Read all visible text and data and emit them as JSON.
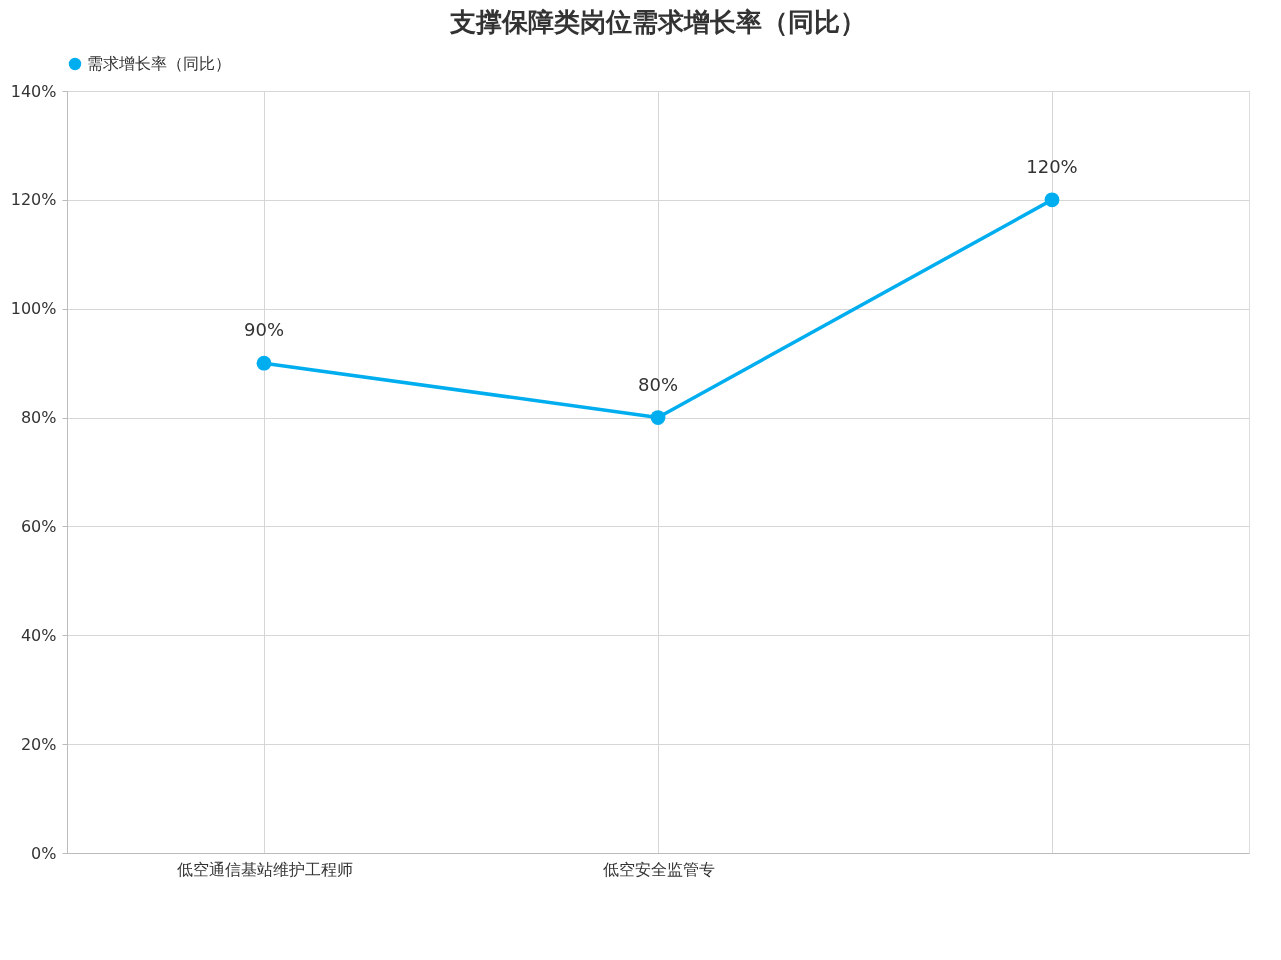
{
  "chart_data": {
    "type": "line",
    "title": "支撑保障类岗位需求增长率（同比）",
    "categories": [
      "低空通信基站维护工程师",
      "低空安全监管专",
      null
    ],
    "series": [
      {
        "name": "需求增长率（同比）",
        "color": "#00aeef",
        "values": [
          90,
          80,
          120
        ],
        "value_labels": [
          "90%",
          "80%",
          "120%"
        ]
      }
    ],
    "ylim": [
      0,
      140
    ],
    "yticks": [
      {
        "value": 0,
        "label": "0%"
      },
      {
        "value": 20,
        "label": "20%"
      },
      {
        "value": 40,
        "label": "40%"
      },
      {
        "value": 60,
        "label": "60%"
      },
      {
        "value": 80,
        "label": "80%"
      },
      {
        "value": 100,
        "label": "100%"
      },
      {
        "value": 120,
        "label": "120%"
      },
      {
        "value": 140,
        "label": "140%"
      }
    ],
    "grid": true,
    "legend": "top",
    "marker": "circle",
    "line_style": "solid"
  }
}
